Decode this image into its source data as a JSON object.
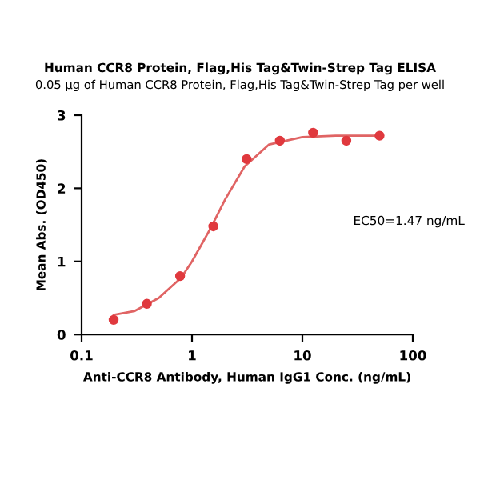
{
  "chart_data": {
    "type": "scatter",
    "title": "Human CCR8 Protein, Flag,His Tag&Twin-Strep Tag ELISA",
    "subtitle": "0.05 μg of Human CCR8 Protein, Flag,His Tag&Twin-Strep Tag per well",
    "xlabel": "Anti-CCR8 Antibody, Human IgG1 Conc. (ng/mL)",
    "ylabel": "Mean Abs. (OD450)",
    "series": [
      {
        "color": "#e0393e",
        "marker": "circle",
        "x": [
          0.195,
          0.39,
          0.78,
          1.56,
          3.125,
          6.25,
          12.5,
          25,
          50
        ],
        "values": [
          0.2,
          0.42,
          0.8,
          1.48,
          2.4,
          2.65,
          2.76,
          2.65,
          2.72
        ]
      },
      {
        "type": "line",
        "color": "#e06464",
        "marker": "none",
        "x": [
          0.195,
          0.3,
          0.5,
          0.8,
          1.0,
          1.47,
          2,
          3,
          5,
          10,
          20,
          50
        ],
        "values": [
          0.27,
          0.32,
          0.5,
          0.78,
          1.0,
          1.45,
          1.85,
          2.3,
          2.6,
          2.7,
          2.72,
          2.72
        ]
      }
    ],
    "log": "x",
    "xlim": [
      0.1,
      100
    ],
    "xticks": [
      0.1,
      1,
      10,
      100
    ],
    "ylim": [
      0,
      3
    ],
    "yticks": [
      0,
      1,
      2,
      3
    ],
    "grid": false,
    "legend": false,
    "annotations": [
      "EC50=1.47 ng/mL"
    ]
  }
}
